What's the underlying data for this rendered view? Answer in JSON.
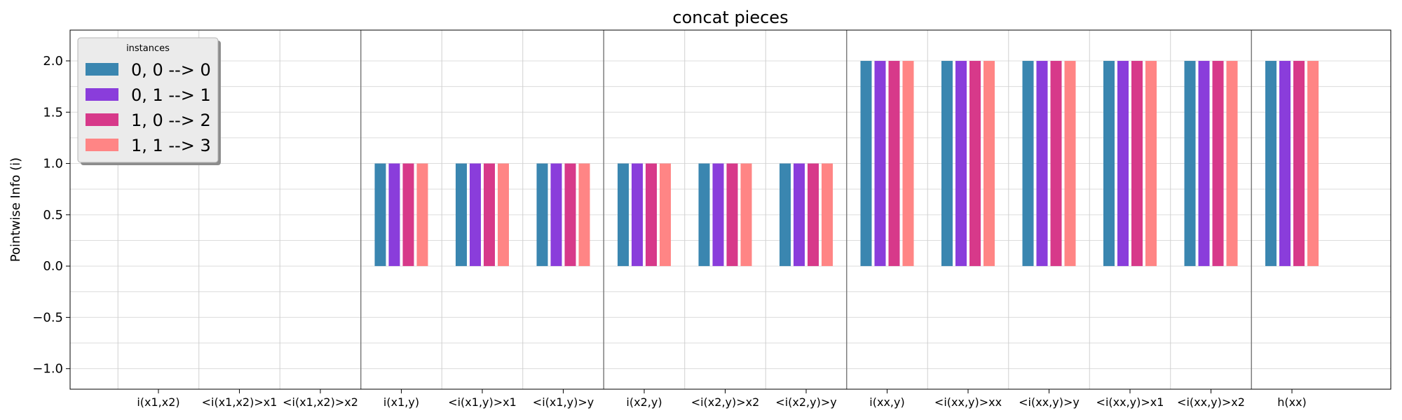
{
  "chart_data": {
    "type": "bar",
    "title": "concat pieces",
    "xlabel": "",
    "ylabel": "Pointwise Info (i)",
    "ylim": [
      -1.2,
      2.3
    ],
    "yticks": [
      -1.0,
      -0.5,
      0.0,
      0.5,
      1.0,
      1.5,
      2.0
    ],
    "ytick_labels": [
      "−1.0",
      "−0.5",
      "0.0",
      "0.5",
      "1.0",
      "1.5",
      "2.0"
    ],
    "grid": true,
    "group_separators_after": [
      3,
      6,
      9,
      14
    ],
    "categories": [
      "i(x1,x2)",
      "<i(x1,x2)>x1",
      "<i(x1,x2)>x2",
      "i(x1,y)",
      "<i(x1,y)>x1",
      "<i(x1,y)>y",
      "i(x2,y)",
      "<i(x2,y)>x2",
      "<i(x2,y)>y",
      "i(xx,y)",
      "<i(xx,y)>xx",
      "<i(xx,y)>y",
      "<i(xx,y)>x1",
      "<i(xx,y)>x2",
      "h(xx)"
    ],
    "series": [
      {
        "name": "0, 0 --> 0",
        "color": "#3a86b0",
        "values": [
          0,
          0,
          0,
          1,
          1,
          1,
          1,
          1,
          1,
          2,
          2,
          2,
          2,
          2,
          2
        ]
      },
      {
        "name": "0, 1 --> 1",
        "color": "#8a3ddb",
        "values": [
          0,
          0,
          0,
          1,
          1,
          1,
          1,
          1,
          1,
          2,
          2,
          2,
          2,
          2,
          2
        ]
      },
      {
        "name": "1, 0 --> 2",
        "color": "#d7398a",
        "values": [
          0,
          0,
          0,
          1,
          1,
          1,
          1,
          1,
          1,
          2,
          2,
          2,
          2,
          2,
          2
        ]
      },
      {
        "name": "1, 1 --> 3",
        "color": "#ff8585",
        "values": [
          0,
          0,
          0,
          1,
          1,
          1,
          1,
          1,
          1,
          2,
          2,
          2,
          2,
          2,
          2
        ]
      }
    ],
    "legend": {
      "title": "instances",
      "placement": "top-left"
    }
  }
}
